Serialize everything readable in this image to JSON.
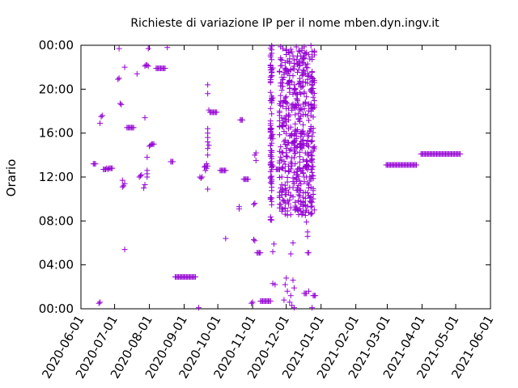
{
  "chart_data": {
    "type": "scatter",
    "title": "Richieste di variazione IP per il nome mben.dyn.ingv.it",
    "xlabel": "",
    "ylabel": "Orario",
    "marker": "+",
    "color": "#9400d3",
    "grid": false,
    "x_tick_labels": [
      "2020-06-01",
      "2020-07-01",
      "2020-08-01",
      "2020-09-01",
      "2020-10-01",
      "2020-11-01",
      "2020-12-01",
      "2021-01-01",
      "2021-02-01",
      "2021-03-01",
      "2021-04-01",
      "2021-05-01",
      "2021-06-01"
    ],
    "y_tick_labels": [
      "00:00",
      "04:00",
      "08:00",
      "12:00",
      "16:00",
      "20:00",
      "00:00"
    ],
    "xlim": [
      "2020-06-01",
      "2021-06-01"
    ],
    "ylim_hours": [
      0,
      24
    ],
    "series": [
      {
        "values_description": "x = date, y = hour of day",
        "points": [
          {
            "x": "2020-06-12",
            "y": 13.2
          },
          {
            "x": "2020-06-13",
            "y": 13.2
          },
          {
            "x": "2020-06-14",
            "y": 13.2
          },
          {
            "x": "2020-06-17",
            "y": 0.5
          },
          {
            "x": "2020-06-18",
            "y": 0.6
          },
          {
            "x": "2020-06-18",
            "y": 16.9
          },
          {
            "x": "2020-06-19",
            "y": 17.5
          },
          {
            "x": "2020-06-20",
            "y": 17.6
          },
          {
            "x": "2020-06-21",
            "y": 12.7
          },
          {
            "x": "2020-06-22",
            "y": 12.7
          },
          {
            "x": "2020-06-23",
            "y": 12.7
          },
          {
            "x": "2020-06-24",
            "y": 12.8
          },
          {
            "x": "2020-06-25",
            "y": 12.7
          },
          {
            "x": "2020-06-26",
            "y": 12.8
          },
          {
            "x": "2020-06-27",
            "y": 12.8
          },
          {
            "x": "2020-06-28",
            "y": 12.8
          },
          {
            "x": "2020-06-29",
            "y": 12.8
          },
          {
            "x": "2020-07-04",
            "y": 20.9
          },
          {
            "x": "2020-07-05",
            "y": 21.0
          },
          {
            "x": "2020-07-06",
            "y": 18.7
          },
          {
            "x": "2020-07-07",
            "y": 18.6
          },
          {
            "x": "2020-07-08",
            "y": 11.7
          },
          {
            "x": "2020-07-08",
            "y": 11.1
          },
          {
            "x": "2020-07-09",
            "y": 11.2
          },
          {
            "x": "2020-07-10",
            "y": 11.4
          },
          {
            "x": "2020-07-10",
            "y": 5.4
          },
          {
            "x": "2020-07-10",
            "y": 22.0
          },
          {
            "x": "2020-07-12",
            "y": 16.5
          },
          {
            "x": "2020-07-13",
            "y": 16.5
          },
          {
            "x": "2020-07-14",
            "y": 16.5
          },
          {
            "x": "2020-07-15",
            "y": 16.5
          },
          {
            "x": "2020-07-16",
            "y": 16.5
          },
          {
            "x": "2020-07-17",
            "y": 16.5
          },
          {
            "x": "2020-07-18",
            "y": 16.5
          },
          {
            "x": "2020-07-05",
            "y": 23.7
          },
          {
            "x": "2020-07-21",
            "y": 21.4
          },
          {
            "x": "2020-07-23",
            "y": 12.0
          },
          {
            "x": "2020-07-24",
            "y": 12.1
          },
          {
            "x": "2020-07-25",
            "y": 12.2
          },
          {
            "x": "2020-07-27",
            "y": 11.0
          },
          {
            "x": "2020-07-28",
            "y": 11.3
          },
          {
            "x": "2020-07-28",
            "y": 17.4
          },
          {
            "x": "2020-07-28",
            "y": 22.1
          },
          {
            "x": "2020-07-29",
            "y": 22.2
          },
          {
            "x": "2020-07-30",
            "y": 22.2
          },
          {
            "x": "2020-07-31",
            "y": 22.1
          },
          {
            "x": "2020-07-30",
            "y": 12.0
          },
          {
            "x": "2020-07-30",
            "y": 12.3
          },
          {
            "x": "2020-07-30",
            "y": 12.6
          },
          {
            "x": "2020-07-30",
            "y": 13.8
          },
          {
            "x": "2020-07-31",
            "y": 23.7
          },
          {
            "x": "2020-08-01",
            "y": 14.8
          },
          {
            "x": "2020-08-02",
            "y": 14.9
          },
          {
            "x": "2020-08-03",
            "y": 15.0
          },
          {
            "x": "2020-08-04",
            "y": 15.0
          },
          {
            "x": "2020-08-05",
            "y": 15.0
          },
          {
            "x": "2020-08-07",
            "y": 21.9
          },
          {
            "x": "2020-08-08",
            "y": 21.9
          },
          {
            "x": "2020-08-09",
            "y": 21.9
          },
          {
            "x": "2020-08-10",
            "y": 21.9
          },
          {
            "x": "2020-08-11",
            "y": 21.9
          },
          {
            "x": "2020-08-12",
            "y": 21.9
          },
          {
            "x": "2020-08-13",
            "y": 21.9
          },
          {
            "x": "2020-08-14",
            "y": 21.9
          },
          {
            "x": "2020-08-15",
            "y": 21.9
          },
          {
            "x": "2020-08-17",
            "y": 23.8
          },
          {
            "x": "2020-08-20",
            "y": 13.4
          },
          {
            "x": "2020-08-21",
            "y": 13.4
          },
          {
            "x": "2020-08-22",
            "y": 13.4
          },
          {
            "x": "2020-08-24",
            "y": 2.9
          },
          {
            "x": "2020-08-25",
            "y": 2.9
          },
          {
            "x": "2020-08-26",
            "y": 2.9
          },
          {
            "x": "2020-08-27",
            "y": 2.9
          },
          {
            "x": "2020-08-28",
            "y": 2.9
          },
          {
            "x": "2020-08-29",
            "y": 2.9
          },
          {
            "x": "2020-08-30",
            "y": 2.9
          },
          {
            "x": "2020-08-31",
            "y": 2.9
          },
          {
            "x": "2020-09-01",
            "y": 2.9
          },
          {
            "x": "2020-09-02",
            "y": 2.9
          },
          {
            "x": "2020-09-03",
            "y": 2.9
          },
          {
            "x": "2020-09-04",
            "y": 2.9
          },
          {
            "x": "2020-09-05",
            "y": 2.9
          },
          {
            "x": "2020-09-06",
            "y": 2.9
          },
          {
            "x": "2020-09-07",
            "y": 2.9
          },
          {
            "x": "2020-09-08",
            "y": 2.9
          },
          {
            "x": "2020-09-09",
            "y": 2.9
          },
          {
            "x": "2020-09-10",
            "y": 2.9
          },
          {
            "x": "2020-09-11",
            "y": 2.9
          },
          {
            "x": "2020-09-14",
            "y": 0.1
          },
          {
            "x": "2020-09-15",
            "y": 12.0
          },
          {
            "x": "2020-09-16",
            "y": 11.9
          },
          {
            "x": "2020-09-17",
            "y": 12.0
          },
          {
            "x": "2020-09-19",
            "y": 12.9
          },
          {
            "x": "2020-09-20",
            "y": 13.0
          },
          {
            "x": "2020-09-20",
            "y": 12.6
          },
          {
            "x": "2020-09-21",
            "y": 12.8
          },
          {
            "x": "2020-09-21",
            "y": 13.2
          },
          {
            "x": "2020-09-22",
            "y": 13.0
          },
          {
            "x": "2020-09-22",
            "y": 14.0
          },
          {
            "x": "2020-09-22",
            "y": 14.6
          },
          {
            "x": "2020-09-22",
            "y": 15.2
          },
          {
            "x": "2020-09-22",
            "y": 15.6
          },
          {
            "x": "2020-09-22",
            "y": 16.0
          },
          {
            "x": "2020-09-22",
            "y": 16.4
          },
          {
            "x": "2020-09-23",
            "y": 14.9
          },
          {
            "x": "2020-09-22",
            "y": 10.9
          },
          {
            "x": "2020-09-22",
            "y": 19.6
          },
          {
            "x": "2020-09-22",
            "y": 20.4
          },
          {
            "x": "2020-09-23",
            "y": 18.1
          },
          {
            "x": "2020-09-24",
            "y": 17.9
          },
          {
            "x": "2020-09-25",
            "y": 17.9
          },
          {
            "x": "2020-09-26",
            "y": 17.9
          },
          {
            "x": "2020-09-27",
            "y": 17.9
          },
          {
            "x": "2020-09-28",
            "y": 17.9
          },
          {
            "x": "2020-09-29",
            "y": 17.9
          },
          {
            "x": "2020-09-30",
            "y": 17.9
          },
          {
            "x": "2020-10-03",
            "y": 12.6
          },
          {
            "x": "2020-10-04",
            "y": 12.6
          },
          {
            "x": "2020-10-05",
            "y": 12.6
          },
          {
            "x": "2020-10-06",
            "y": 12.6
          },
          {
            "x": "2020-10-07",
            "y": 12.6
          },
          {
            "x": "2020-10-08",
            "y": 12.6
          },
          {
            "x": "2020-10-08",
            "y": 6.4
          },
          {
            "x": "2020-10-20",
            "y": 9.1
          },
          {
            "x": "2020-10-20",
            "y": 9.3
          },
          {
            "x": "2020-10-21",
            "y": 17.2
          },
          {
            "x": "2020-10-22",
            "y": 17.2
          },
          {
            "x": "2020-10-23",
            "y": 17.2
          },
          {
            "x": "2020-10-24",
            "y": 11.8
          },
          {
            "x": "2020-10-25",
            "y": 11.8
          },
          {
            "x": "2020-10-26",
            "y": 11.8
          },
          {
            "x": "2020-10-27",
            "y": 11.8
          },
          {
            "x": "2020-10-28",
            "y": 11.8
          },
          {
            "x": "2020-10-31",
            "y": 0.5
          },
          {
            "x": "2020-11-01",
            "y": 0.6
          },
          {
            "x": "2020-11-02",
            "y": 6.3
          },
          {
            "x": "2020-11-03",
            "y": 6.2
          },
          {
            "x": "2020-11-02",
            "y": 9.5
          },
          {
            "x": "2020-11-03",
            "y": 9.6
          },
          {
            "x": "2020-11-03",
            "y": 14.0
          },
          {
            "x": "2020-11-04",
            "y": 14.2
          },
          {
            "x": "2020-11-04",
            "y": 13.5
          },
          {
            "x": "2020-11-05",
            "y": 5.1
          },
          {
            "x": "2020-11-06",
            "y": 5.1
          },
          {
            "x": "2020-11-07",
            "y": 5.1
          },
          {
            "x": "2020-11-08",
            "y": 5.1
          },
          {
            "x": "2020-11-08",
            "y": 0.7
          },
          {
            "x": "2020-11-09",
            "y": 0.7
          },
          {
            "x": "2020-11-10",
            "y": 0.7
          },
          {
            "x": "2020-11-11",
            "y": 0.7
          },
          {
            "x": "2020-11-12",
            "y": 0.7
          },
          {
            "x": "2020-11-13",
            "y": 0.7
          },
          {
            "x": "2020-11-14",
            "y": 0.7
          },
          {
            "x": "2020-11-15",
            "y": 0.7
          },
          {
            "x": "2020-11-16",
            "y": 0.7
          },
          {
            "x": "2020-11-17",
            "y": 0.7
          },
          {
            "x": "2020-11-19",
            "y": 5.2
          },
          {
            "x": "2020-11-20",
            "y": 5.9
          },
          {
            "x": "2020-11-19",
            "y": 2.3
          },
          {
            "x": "2020-11-21",
            "y": 2.2
          },
          {
            "x": "2020-11-22",
            "y": 12.7
          },
          {
            "x": "2020-11-23",
            "y": 12.7
          },
          {
            "x": "2020-11-24",
            "y": 12.7
          },
          {
            "x": "2020-11-25",
            "y": 12.7
          },
          {
            "x": "2020-11-29",
            "y": 0.8
          },
          {
            "x": "2020-11-30",
            "y": 2.2
          },
          {
            "x": "2020-12-01",
            "y": 2.8
          },
          {
            "x": "2020-12-02",
            "y": 1.6
          },
          {
            "x": "2020-12-04",
            "y": 0.6
          },
          {
            "x": "2020-12-05",
            "y": 1.2
          },
          {
            "x": "2020-12-06",
            "y": 0.3
          },
          {
            "x": "2020-12-07",
            "y": 2.6
          },
          {
            "x": "2020-12-08",
            "y": 1.9
          },
          {
            "x": "2020-12-08",
            "y": 0.1
          },
          {
            "x": "2020-12-05",
            "y": 5.0
          },
          {
            "x": "2020-12-07",
            "y": 6.0
          },
          {
            "x": "2020-12-17",
            "y": 1.4
          },
          {
            "x": "2020-12-18",
            "y": 1.4
          },
          {
            "x": "2020-12-19",
            "y": 1.4
          },
          {
            "x": "2020-12-19",
            "y": 7.9
          },
          {
            "x": "2020-12-20",
            "y": 7.0
          },
          {
            "x": "2020-12-20",
            "y": 6.6
          },
          {
            "x": "2020-12-20",
            "y": 5.1
          },
          {
            "x": "2020-12-21",
            "y": 5.1
          },
          {
            "x": "2020-12-21",
            "y": 1.6
          },
          {
            "x": "2020-12-21",
            "y": 13.0
          },
          {
            "x": "2020-12-22",
            "y": 9.8
          },
          {
            "x": "2020-12-23",
            "y": 9.7
          },
          {
            "x": "2020-12-23",
            "y": 18.2
          },
          {
            "x": "2020-12-24",
            "y": 18.3
          },
          {
            "x": "2020-12-24",
            "y": 0.1
          },
          {
            "x": "2020-12-20",
            "y": 22.3
          },
          {
            "x": "2020-12-17",
            "y": 22.8
          },
          {
            "x": "2020-12-25",
            "y": 1.2
          },
          {
            "x": "2020-12-26",
            "y": 1.2
          },
          {
            "x": "2020-12-27",
            "y": 1.2
          },
          {
            "x": "2020-12-10",
            "y": 10.8
          },
          {
            "x": "2020-12-11",
            "y": 10.8
          },
          {
            "x": "2020-12-12",
            "y": 10.8
          },
          {
            "x": "2020-12-13",
            "y": 10.8
          },
          {
            "x": "2020-12-14",
            "y": 10.8
          }
        ]
      }
    ]
  }
}
